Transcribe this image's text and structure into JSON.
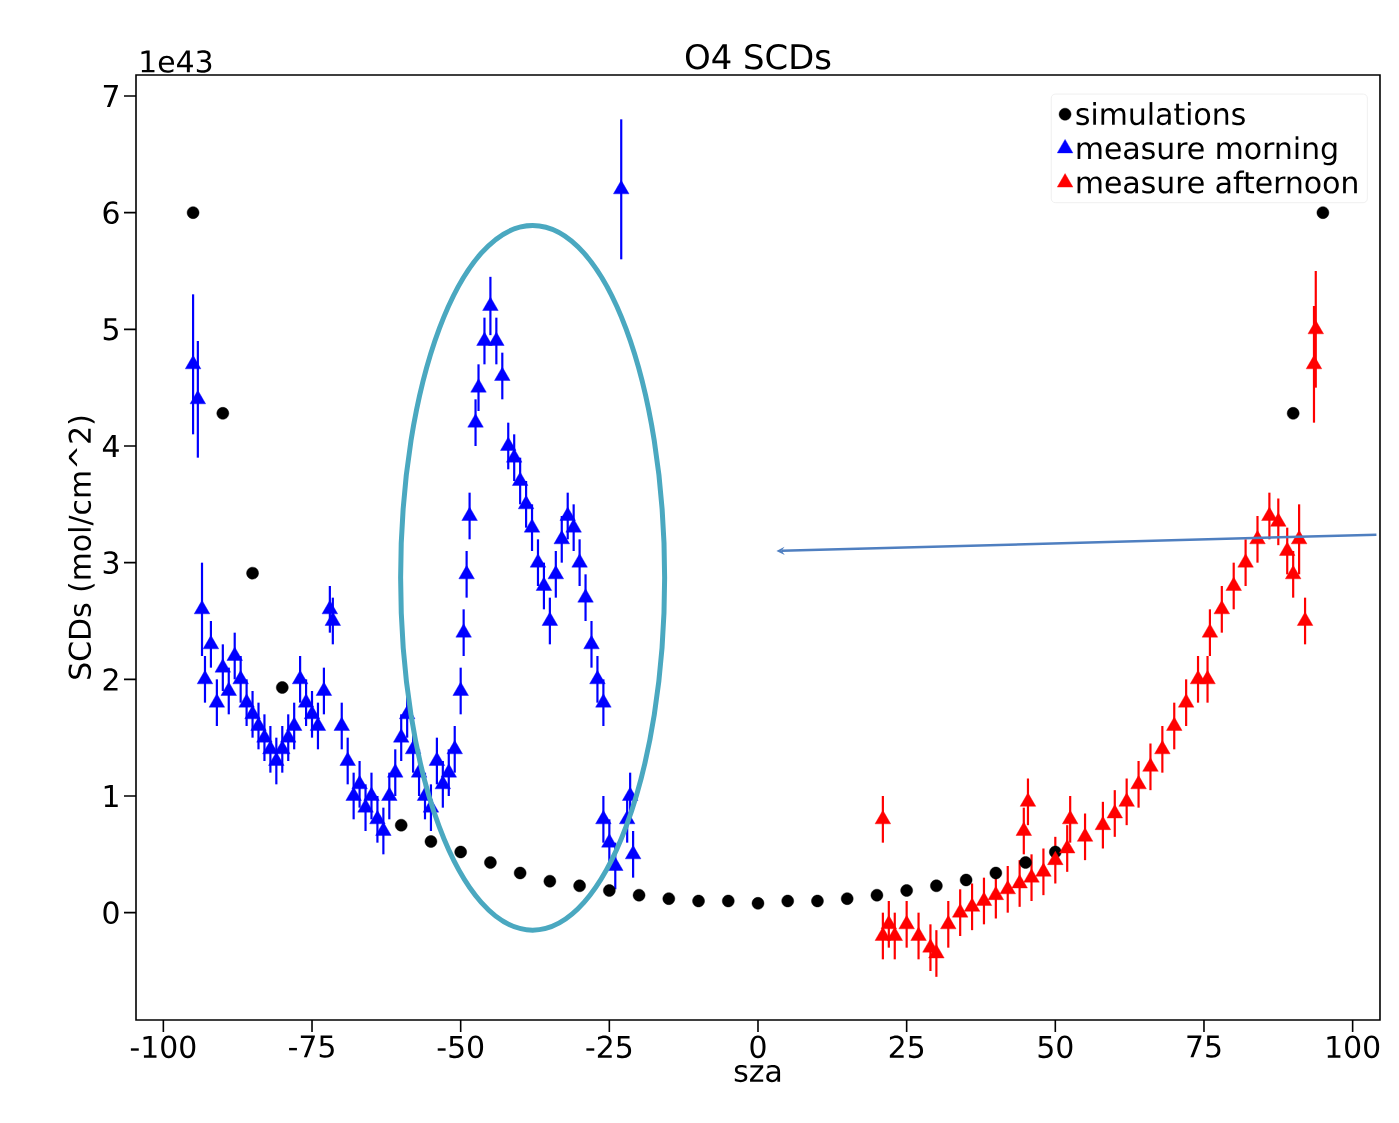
{
  "chart_data": {
    "type": "scatter",
    "title": "O4 SCDs",
    "xlabel": "sza",
    "ylabel": "SCDs (mol/cm^2)",
    "annotations": [
      "1e43"
    ],
    "xlim": [
      -104.6,
      104.6
    ],
    "ylim": [
      -0.92,
      7.18
    ],
    "xticks": [
      -100,
      -75,
      -50,
      -25,
      0,
      25,
      50,
      75,
      100
    ],
    "yticks": [
      0,
      1,
      2,
      3,
      4,
      5,
      6,
      7
    ],
    "legend": "top right",
    "series": [
      {
        "name": "simulations",
        "color": "#000000",
        "marker": "circle",
        "x": [
          -95,
          -90,
          -85,
          -80,
          -60,
          -55,
          -50,
          -45,
          -40,
          -35,
          -30,
          -25,
          -20,
          -15,
          -10,
          -5,
          0,
          5,
          10,
          15,
          20,
          25,
          30,
          35,
          40,
          45,
          50,
          55,
          90,
          95
        ],
        "values": [
          6.0,
          4.28,
          2.91,
          1.93,
          0.75,
          0.61,
          0.52,
          0.43,
          0.34,
          0.27,
          0.23,
          0.19,
          0.15,
          0.12,
          0.1,
          0.1,
          0.08,
          0.1,
          0.1,
          0.12,
          0.15,
          0.19,
          0.23,
          0.28,
          0.34,
          0.43,
          0.52,
          null,
          4.28,
          6.0
        ]
      },
      {
        "name": "measure morning",
        "color": "#0000ff",
        "marker": "triangle",
        "x": [
          -95,
          -94.2,
          -93.5,
          -93,
          -92,
          -91,
          -90,
          -89,
          -88,
          -87,
          -86,
          -85,
          -84,
          -83,
          -82,
          -81,
          -80,
          -79,
          -78,
          -77,
          -76,
          -75,
          -74,
          -73,
          -72,
          -71.5,
          -70,
          -69,
          -68,
          -67,
          -66,
          -65,
          -64,
          -63,
          -62,
          -61,
          -60,
          -59,
          -58,
          -57,
          -56,
          -55,
          -54,
          -53,
          -52,
          -51,
          -50,
          -49.5,
          -49,
          -48.5,
          -47.5,
          -47,
          -46,
          -45,
          -44,
          -43,
          -42,
          -41,
          -40,
          -39,
          -38,
          -37,
          -36,
          -35,
          -34,
          -33,
          -32,
          -31,
          -30,
          -29,
          -28,
          -27,
          -26,
          -26,
          -25,
          -24,
          -23,
          -22,
          -21.5,
          -21
        ],
        "values": [
          4.7,
          4.4,
          2.6,
          2.0,
          2.3,
          1.8,
          2.1,
          1.9,
          2.2,
          2.0,
          1.8,
          1.7,
          1.6,
          1.5,
          1.4,
          1.3,
          1.4,
          1.5,
          1.6,
          2.0,
          1.8,
          1.7,
          1.6,
          1.9,
          2.6,
          2.5,
          1.6,
          1.3,
          1.0,
          1.1,
          0.9,
          1.0,
          0.8,
          0.7,
          1.0,
          1.2,
          1.5,
          1.7,
          1.4,
          1.2,
          1.0,
          0.9,
          1.3,
          1.1,
          1.2,
          1.4,
          1.9,
          2.4,
          2.9,
          3.4,
          4.2,
          4.5,
          4.9,
          5.2,
          4.9,
          4.6,
          4.0,
          3.9,
          3.7,
          3.5,
          3.3,
          3.0,
          2.8,
          2.5,
          2.9,
          3.2,
          3.4,
          3.3,
          3.0,
          2.7,
          2.3,
          2.0,
          1.8,
          0.8,
          0.6,
          0.4,
          6.2,
          0.8,
          1.0,
          0.5
        ],
        "errors": [
          0.6,
          0.5,
          0.4,
          0.2,
          0.2,
          0.2,
          0.2,
          0.2,
          0.2,
          0.2,
          0.2,
          0.2,
          0.2,
          0.2,
          0.2,
          0.2,
          0.2,
          0.2,
          0.2,
          0.2,
          0.2,
          0.2,
          0.2,
          0.2,
          0.2,
          0.2,
          0.2,
          0.2,
          0.2,
          0.2,
          0.2,
          0.2,
          0.2,
          0.2,
          0.2,
          0.2,
          0.2,
          0.2,
          0.2,
          0.2,
          0.2,
          0.2,
          0.2,
          0.2,
          0.2,
          0.2,
          0.2,
          0.2,
          0.2,
          0.2,
          0.2,
          0.2,
          0.2,
          0.25,
          0.2,
          0.2,
          0.2,
          0.2,
          0.2,
          0.2,
          0.2,
          0.2,
          0.2,
          0.2,
          0.2,
          0.2,
          0.2,
          0.2,
          0.2,
          0.2,
          0.2,
          0.2,
          0.2,
          0.2,
          0.2,
          0.2,
          0.6,
          0.2,
          0.2,
          0.2
        ]
      },
      {
        "name": "measure afternoon",
        "color": "#ff0000",
        "marker": "triangle",
        "x": [
          21,
          21,
          22,
          23,
          25,
          27,
          29,
          30,
          32,
          34,
          36,
          38,
          40,
          42,
          44,
          45.4,
          44.7,
          46,
          48,
          50,
          52,
          52.5,
          55,
          58,
          60,
          62,
          64,
          66,
          68,
          70,
          72,
          74,
          75.6,
          76,
          78,
          80,
          82,
          84,
          86,
          87.5,
          89,
          90,
          91,
          92,
          93.5,
          93.8
        ],
        "values": [
          0.8,
          -0.2,
          -0.1,
          -0.2,
          -0.1,
          -0.2,
          -0.3,
          -0.35,
          -0.1,
          0.0,
          0.05,
          0.1,
          0.15,
          0.2,
          0.25,
          0.95,
          0.7,
          0.3,
          0.35,
          0.45,
          0.55,
          0.8,
          0.65,
          0.75,
          0.85,
          0.95,
          1.1,
          1.25,
          1.4,
          1.6,
          1.8,
          2.0,
          2.0,
          2.4,
          2.6,
          2.8,
          3.0,
          3.2,
          3.4,
          3.35,
          3.1,
          2.9,
          3.2,
          2.5,
          4.7,
          5.0
        ],
        "errors": [
          0.2,
          0.2,
          0.2,
          0.2,
          0.2,
          0.2,
          0.2,
          0.2,
          0.2,
          0.2,
          0.2,
          0.2,
          0.2,
          0.2,
          0.2,
          0.2,
          0.2,
          0.2,
          0.2,
          0.2,
          0.2,
          0.2,
          0.2,
          0.2,
          0.2,
          0.2,
          0.2,
          0.2,
          0.2,
          0.2,
          0.2,
          0.2,
          0.2,
          0.2,
          0.2,
          0.2,
          0.2,
          0.2,
          0.2,
          0.2,
          0.2,
          0.2,
          0.3,
          0.2,
          0.5,
          0.5
        ]
      }
    ]
  }
}
